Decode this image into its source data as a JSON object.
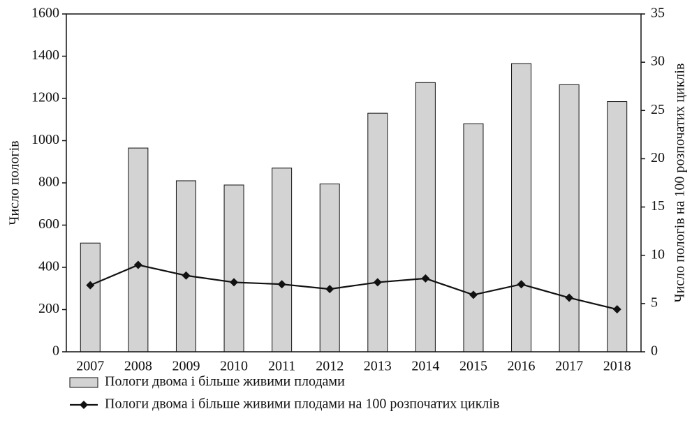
{
  "chart_data": {
    "type": "bar",
    "categories": [
      "2007",
      "2008",
      "2009",
      "2010",
      "2011",
      "2012",
      "2013",
      "2014",
      "2015",
      "2016",
      "2017",
      "2018"
    ],
    "series": [
      {
        "name": "Пологи двома і більше живими плодами",
        "type": "bar",
        "color": "#d3d3d3",
        "values": [
          515,
          965,
          810,
          790,
          870,
          795,
          1130,
          1275,
          1080,
          1365,
          1265,
          1185
        ]
      },
      {
        "name": "Пологи двома і більше живими плодами на 100 розпочатих циклів",
        "type": "line",
        "color": "#111111",
        "axis": "y2",
        "values": [
          6.9,
          9.0,
          7.9,
          7.2,
          7.0,
          6.5,
          7.2,
          7.6,
          5.9,
          7.0,
          5.6,
          4.4
        ]
      }
    ],
    "y_label": "Число пологів",
    "y2_label": "Число пологів на 100 розпочатих циклів",
    "ylim": [
      0,
      1600
    ],
    "yticks": [
      0,
      200,
      400,
      600,
      800,
      1000,
      1200,
      1400,
      1600
    ],
    "y2lim": [
      0,
      35
    ],
    "y2ticks": [
      0,
      5,
      10,
      15,
      20,
      25,
      30,
      35
    ],
    "legend": "bottom-left"
  }
}
